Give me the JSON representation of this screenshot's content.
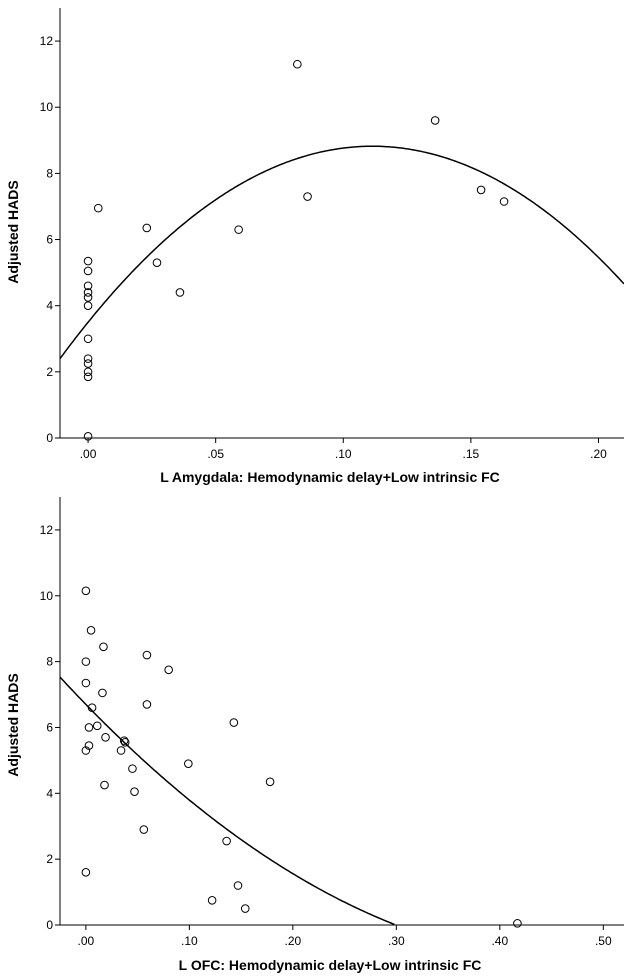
{
  "chart_data": [
    {
      "type": "scatter",
      "title": "",
      "xlabel": "L Amygdala: Hemodynamic delay+Low intrinsic FC",
      "ylabel": "Adjusted HADS",
      "xlim": [
        -0.011,
        0.21
      ],
      "ylim": [
        0,
        13
      ],
      "x_ticks": [
        0,
        0.05,
        0.1,
        0.15,
        0.2
      ],
      "x_tick_labels": [
        ".00",
        ".05",
        ".10",
        ".15",
        ".20"
      ],
      "y_ticks": [
        0,
        2,
        4,
        6,
        8,
        10,
        12
      ],
      "y_tick_labels": [
        "0",
        "2",
        "4",
        "6",
        "8",
        "10",
        "12"
      ],
      "grid": false,
      "points": [
        {
          "x": 0.0,
          "y": 5.35
        },
        {
          "x": 0.0,
          "y": 5.05
        },
        {
          "x": 0.0,
          "y": 4.6
        },
        {
          "x": 0.0,
          "y": 4.4
        },
        {
          "x": 0.0,
          "y": 4.25
        },
        {
          "x": 0.0,
          "y": 4.0
        },
        {
          "x": 0.0,
          "y": 3.0
        },
        {
          "x": 0.0,
          "y": 2.4
        },
        {
          "x": 0.0,
          "y": 2.25
        },
        {
          "x": 0.0,
          "y": 2.0
        },
        {
          "x": 0.0,
          "y": 1.85
        },
        {
          "x": 0.0,
          "y": 0.05
        },
        {
          "x": 0.004,
          "y": 6.95
        },
        {
          "x": 0.023,
          "y": 6.35
        },
        {
          "x": 0.027,
          "y": 5.3
        },
        {
          "x": 0.036,
          "y": 4.4
        },
        {
          "x": 0.059,
          "y": 6.3
        },
        {
          "x": 0.082,
          "y": 11.3
        },
        {
          "x": 0.086,
          "y": 7.3
        },
        {
          "x": 0.136,
          "y": 9.6
        },
        {
          "x": 0.154,
          "y": 7.5
        },
        {
          "x": 0.163,
          "y": 7.15
        }
      ],
      "fit": {
        "type": "quadratic",
        "coefficients": [
          3.5,
          95.5,
          -428.5
        ]
      }
    },
    {
      "type": "scatter",
      "title": "",
      "xlabel": "L OFC: Hemodynamic delay+Low intrinsic FC",
      "ylabel": "Adjusted HADS",
      "xlim": [
        -0.025,
        0.52
      ],
      "ylim": [
        0,
        13
      ],
      "x_ticks": [
        0,
        0.1,
        0.2,
        0.3,
        0.4,
        0.5
      ],
      "x_tick_labels": [
        ".00",
        ".10",
        ".20",
        ".30",
        ".40",
        ".50"
      ],
      "y_ticks": [
        0,
        2,
        4,
        6,
        8,
        10,
        12
      ],
      "y_tick_labels": [
        "0",
        "2",
        "4",
        "6",
        "8",
        "10",
        "12"
      ],
      "grid": false,
      "points": [
        {
          "x": 0.0,
          "y": 10.15
        },
        {
          "x": 0.005,
          "y": 8.95
        },
        {
          "x": 0.017,
          "y": 8.45
        },
        {
          "x": 0.059,
          "y": 8.2
        },
        {
          "x": 0.0,
          "y": 8.0
        },
        {
          "x": 0.08,
          "y": 7.75
        },
        {
          "x": 0.0,
          "y": 7.35
        },
        {
          "x": 0.016,
          "y": 7.05
        },
        {
          "x": 0.059,
          "y": 6.7
        },
        {
          "x": 0.006,
          "y": 6.6
        },
        {
          "x": 0.143,
          "y": 6.15
        },
        {
          "x": 0.003,
          "y": 6.0
        },
        {
          "x": 0.011,
          "y": 6.05
        },
        {
          "x": 0.019,
          "y": 5.7
        },
        {
          "x": 0.037,
          "y": 5.6
        },
        {
          "x": 0.038,
          "y": 5.55
        },
        {
          "x": 0.003,
          "y": 5.45
        },
        {
          "x": 0.0,
          "y": 5.3
        },
        {
          "x": 0.034,
          "y": 5.3
        },
        {
          "x": 0.099,
          "y": 4.9
        },
        {
          "x": 0.045,
          "y": 4.75
        },
        {
          "x": 0.178,
          "y": 4.35
        },
        {
          "x": 0.018,
          "y": 4.25
        },
        {
          "x": 0.047,
          "y": 4.05
        },
        {
          "x": 0.056,
          "y": 2.9
        },
        {
          "x": 0.136,
          "y": 2.55
        },
        {
          "x": 0.0,
          "y": 1.6
        },
        {
          "x": 0.147,
          "y": 1.2
        },
        {
          "x": 0.122,
          "y": 0.75
        },
        {
          "x": 0.154,
          "y": 0.5
        },
        {
          "x": 0.417,
          "y": 0.05
        }
      ],
      "fit": {
        "type": "quadratic",
        "coefficients": [
          6.7,
          -32.4,
          33.5
        ]
      }
    }
  ]
}
